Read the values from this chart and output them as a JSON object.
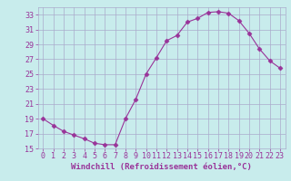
{
  "x": [
    0,
    1,
    2,
    3,
    4,
    5,
    6,
    7,
    8,
    9,
    10,
    11,
    12,
    13,
    14,
    15,
    16,
    17,
    18,
    19,
    20,
    21,
    22,
    23
  ],
  "y": [
    19,
    18.1,
    17.3,
    16.8,
    16.3,
    15.7,
    15.5,
    15.5,
    19.0,
    21.6,
    25.0,
    27.2,
    29.5,
    30.2,
    32.0,
    32.5,
    33.3,
    33.4,
    33.2,
    32.2,
    30.5,
    28.4,
    26.8,
    25.8
  ],
  "line_color": "#993399",
  "marker": "D",
  "marker_size": 2.5,
  "bg_color": "#c8ecec",
  "grid_color": "#aaaacc",
  "xlabel": "Windchill (Refroidissement éolien,°C)",
  "ylim": [
    15,
    34
  ],
  "xlim": [
    -0.5,
    23.5
  ],
  "yticks": [
    15,
    17,
    19,
    21,
    23,
    25,
    27,
    29,
    31,
    33
  ],
  "xticks": [
    0,
    1,
    2,
    3,
    4,
    5,
    6,
    7,
    8,
    9,
    10,
    11,
    12,
    13,
    14,
    15,
    16,
    17,
    18,
    19,
    20,
    21,
    22,
    23
  ],
  "tick_color": "#993399",
  "label_fontsize": 6.5,
  "tick_fontsize": 6.0
}
